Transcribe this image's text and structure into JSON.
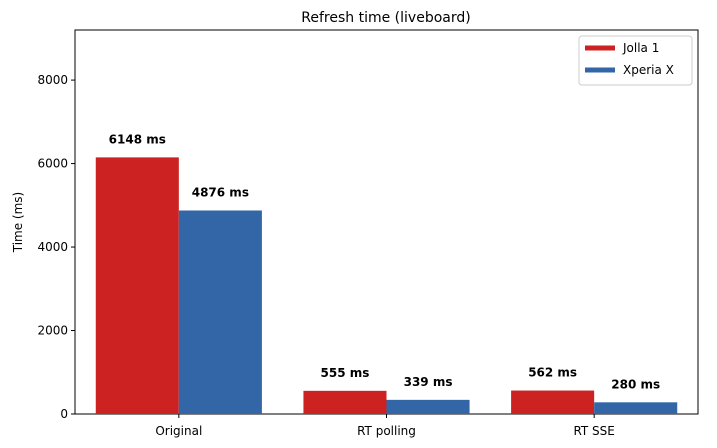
{
  "chart_data": {
    "type": "bar",
    "title": "Refresh time (liveboard)",
    "xlabel": "",
    "ylabel": "Time (ms)",
    "ylim": [
      0,
      9200
    ],
    "yticks": [
      0,
      2000,
      4000,
      6000,
      8000
    ],
    "categories": [
      "Original",
      "RT polling",
      "RT SSE"
    ],
    "series": [
      {
        "name": "Jolla 1",
        "color": "#cc2222",
        "values": [
          6148,
          555,
          562
        ],
        "labels": [
          "6148 ms",
          "555 ms",
          "562 ms"
        ]
      },
      {
        "name": "Xperia X",
        "color": "#3366a6",
        "values": [
          4876,
          339,
          280
        ],
        "labels": [
          "4876 ms",
          "339 ms",
          "280 ms"
        ]
      }
    ],
    "legend_position": "top-right",
    "grid": false
  }
}
